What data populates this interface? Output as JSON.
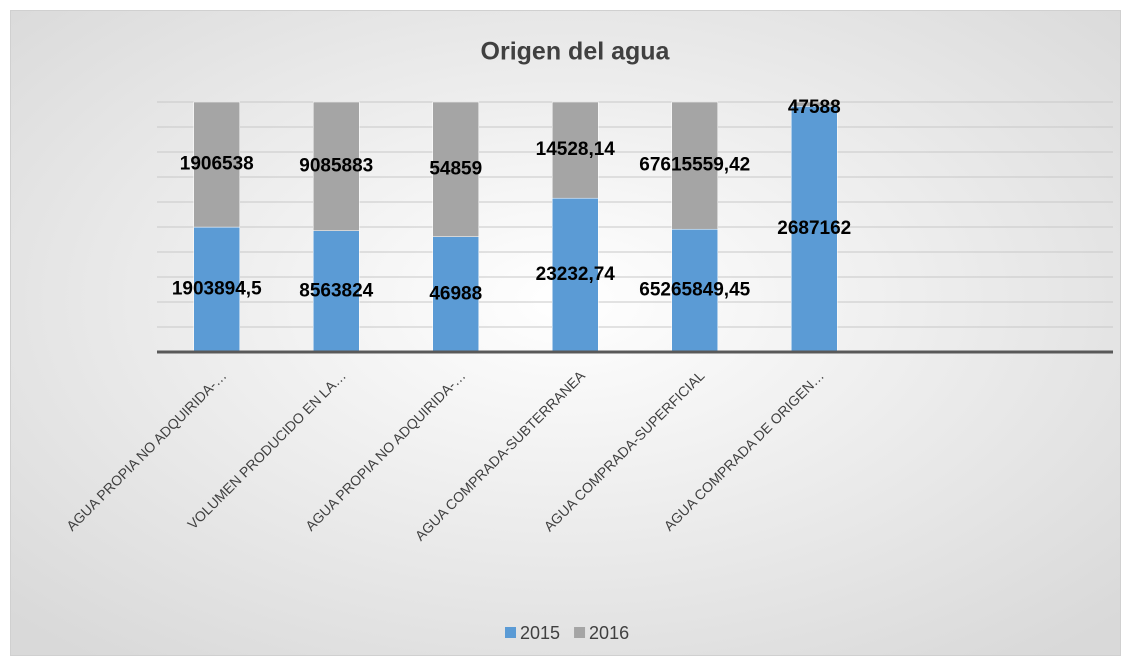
{
  "chart_data": {
    "type": "bar",
    "stacking": "percent",
    "title": "Origen del agua",
    "categories": [
      "AGUA PROPIA NO ADQUIRIDA-…",
      "VOLUMEN PRODUCIDO EN LA…",
      "AGUA PROPIA NO ADQUIRIDA-…",
      "AGUA COMPRADA-SUBTERRANEA",
      "AGUA COMPRADA-SUPERFICIAL",
      "AGUA COMPRADA DE ORIGEN…",
      null,
      null
    ],
    "series": [
      {
        "name": "2015",
        "color": "#5b9bd5",
        "values": [
          1903894.5,
          8563824,
          46988,
          23232.74,
          65265849.45,
          2687162,
          null,
          null
        ],
        "value_labels": [
          "1903894,5",
          "8563824",
          "46988",
          "23232,74",
          "65265849,45",
          "2687162",
          null,
          null
        ]
      },
      {
        "name": "2016",
        "color": "#a5a5a5",
        "values": [
          1906538,
          9085883,
          54859,
          14528.14,
          67615559.42,
          47588,
          null,
          null
        ],
        "value_labels": [
          "1906538",
          "9085883",
          "54859",
          "14528,14",
          "67615559,42",
          "47588",
          null,
          null
        ]
      }
    ],
    "ylim": [
      0,
      100
    ],
    "yticks": [
      0,
      10,
      20,
      30,
      40,
      50,
      60,
      70,
      80,
      90,
      100
    ],
    "ytick_labels": false,
    "grid": true,
    "legend": "bottom"
  }
}
